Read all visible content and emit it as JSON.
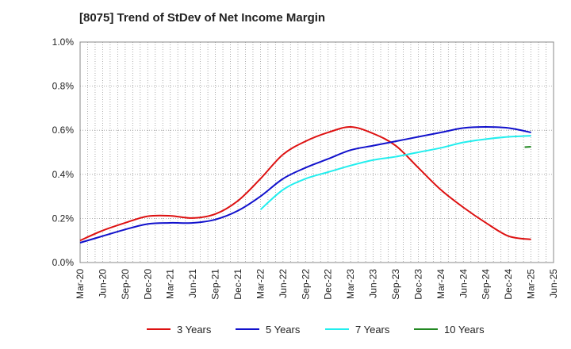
{
  "chart_data": {
    "type": "line",
    "title": "[8075]  Trend of StDev of Net Income Margin",
    "xlabel": "",
    "ylabel": "",
    "x_categories": [
      "Mar-20",
      "Jun-20",
      "Sep-20",
      "Dec-20",
      "Mar-21",
      "Jun-21",
      "Sep-21",
      "Dec-21",
      "Mar-22",
      "Jun-22",
      "Sep-22",
      "Dec-22",
      "Mar-23",
      "Jun-23",
      "Sep-23",
      "Dec-23",
      "Mar-24",
      "Jun-24",
      "Sep-24",
      "Dec-24",
      "Mar-25",
      "Jun-25"
    ],
    "y_ticks": [
      "0.0%",
      "0.2%",
      "0.4%",
      "0.6%",
      "0.8%",
      "1.0%"
    ],
    "ylim": [
      0,
      1.0
    ],
    "grid": true,
    "legend_position": "bottom",
    "series": [
      {
        "name": "3 Years",
        "color": "#dd1111",
        "values": [
          0.1,
          0.145,
          0.18,
          0.21,
          0.212,
          0.202,
          0.22,
          0.28,
          0.38,
          0.49,
          0.55,
          0.59,
          0.615,
          0.585,
          0.53,
          0.43,
          0.33,
          0.25,
          0.18,
          0.12,
          0.105,
          null
        ]
      },
      {
        "name": "5 Years",
        "color": "#1111cc",
        "values": [
          0.09,
          0.12,
          0.15,
          0.175,
          0.18,
          0.18,
          0.195,
          0.235,
          0.3,
          0.38,
          0.43,
          0.47,
          0.51,
          0.53,
          0.55,
          0.57,
          0.59,
          0.61,
          0.615,
          0.61,
          0.59,
          null
        ]
      },
      {
        "name": "7 Years",
        "color": "#22eeee",
        "values": [
          null,
          null,
          null,
          null,
          null,
          null,
          null,
          null,
          0.24,
          0.33,
          0.38,
          0.41,
          0.44,
          0.465,
          0.48,
          0.5,
          0.52,
          0.545,
          0.56,
          0.57,
          0.575,
          null
        ]
      },
      {
        "name": "10 Years",
        "color": "#228822",
        "values": [
          null,
          null,
          null,
          null,
          null,
          null,
          null,
          null,
          null,
          null,
          null,
          null,
          null,
          null,
          null,
          null,
          null,
          null,
          null,
          null,
          0.525,
          null
        ]
      }
    ]
  }
}
